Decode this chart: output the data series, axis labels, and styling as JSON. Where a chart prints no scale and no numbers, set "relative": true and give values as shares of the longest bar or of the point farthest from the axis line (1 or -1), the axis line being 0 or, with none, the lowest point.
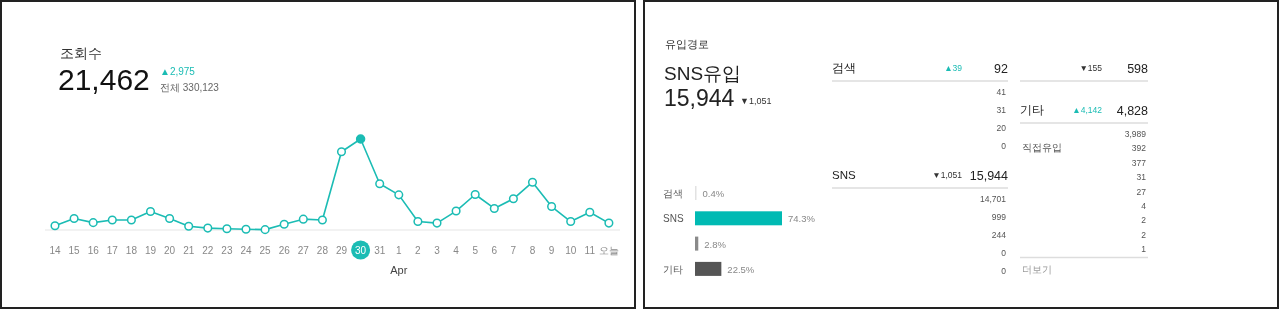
{
  "chart_data": [
    {
      "type": "line",
      "relative": true,
      "title": "조회수",
      "annotations": [
        "21,462",
        "▲2,975",
        "전체 330,123"
      ],
      "xlabel": "Apr",
      "marker": "circle",
      "line_style": "solid",
      "categories": [
        "14",
        "15",
        "16",
        "17",
        "18",
        "19",
        "20",
        "21",
        "22",
        "23",
        "24",
        "25",
        "26",
        "27",
        "28",
        "29",
        "30",
        "31",
        "1",
        "2",
        "3",
        "4",
        "5",
        "6",
        "7",
        "8",
        "9",
        "10",
        "11",
        "오늘"
      ],
      "series": [
        {
          "color": "#1bbcb4",
          "values": [
            0.047,
            0.127,
            0.081,
            0.11,
            0.11,
            0.203,
            0.127,
            0.042,
            0.021,
            0.013,
            0.008,
            0.004,
            0.064,
            0.119,
            0.11,
            0.86,
            1,
            0.508,
            0.386,
            0.093,
            0.076,
            0.208,
            0.39,
            0.237,
            0.343,
            0.525,
            0.258,
            0.093,
            0.195,
            0.076
          ]
        }
      ]
    },
    {
      "type": "bar",
      "orientation": "horizontal",
      "title": "유입경로",
      "annotations": [
        "SNS유입",
        "15,944",
        "▼1,051"
      ],
      "categories": [
        "검색",
        "SNS",
        null,
        "기타"
      ],
      "values": [
        0.4,
        74.3,
        2.8,
        22.5
      ],
      "colors": [
        "#e2e2e2",
        "#00bab3",
        "#8a8a8a",
        "#555555"
      ],
      "value_labels": [
        "0.4%",
        "74.3%",
        "2.8%",
        "22.5%"
      ]
    },
    {
      "type": "other",
      "title": "검색",
      "annotations": [
        "▲39",
        "92"
      ],
      "color": "#1bbcb4",
      "categories": [
        null,
        null,
        null,
        null
      ],
      "values": [
        41,
        31,
        20,
        0
      ],
      "value_labels": [
        "41",
        "31",
        "20",
        "0"
      ]
    },
    {
      "type": "other",
      "title": "SNS",
      "annotations": [
        "▼1,051",
        "15,944"
      ],
      "color": "#333333",
      "categories": [
        null,
        null,
        null,
        null,
        null
      ],
      "values": [
        14701,
        999,
        244,
        0,
        0
      ],
      "value_labels": [
        "14,701",
        "999",
        "244",
        "0",
        "0"
      ]
    },
    {
      "type": "other",
      "title": null,
      "annotations": [
        "▼155",
        "598"
      ],
      "color": "#333333"
    },
    {
      "type": "other",
      "title": "기타",
      "annotations": [
        "▲4,142",
        "4,828",
        "더보기"
      ],
      "color": "#1bbcb4",
      "categories": [
        null,
        "직접유입",
        null,
        null,
        null,
        null,
        null,
        null,
        null
      ],
      "values": [
        3989,
        392,
        377,
        31,
        27,
        4,
        2,
        2,
        1
      ],
      "value_labels": [
        "3,989",
        "392",
        "377",
        "31",
        "27",
        "4",
        "2",
        "2",
        "1"
      ]
    }
  ]
}
